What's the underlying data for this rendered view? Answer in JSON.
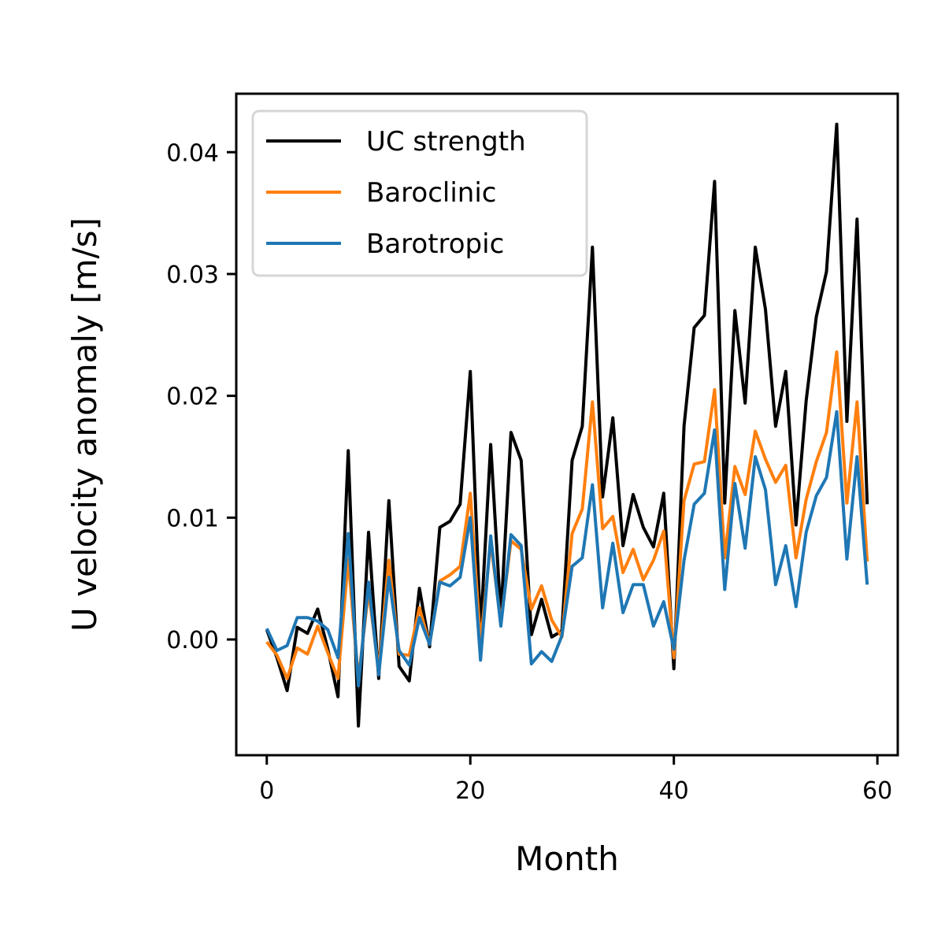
{
  "chart_data": {
    "type": "line",
    "title": "",
    "xlabel": "Month",
    "ylabel": "U velocity anomaly [m/s]",
    "xlim": [
      -3,
      62
    ],
    "ylim": [
      -0.0095,
      0.0448
    ],
    "xticks": [
      0,
      20,
      40,
      60
    ],
    "yticks": [
      0.0,
      0.01,
      0.02,
      0.03,
      0.04
    ],
    "xtick_labels": [
      "0",
      "20",
      "40",
      "60"
    ],
    "ytick_labels": [
      "0.00",
      "0.01",
      "0.02",
      "0.03",
      "0.04"
    ],
    "grid": false,
    "legend_position": "top-left",
    "x": [
      0,
      1,
      2,
      3,
      4,
      5,
      6,
      7,
      8,
      9,
      10,
      11,
      12,
      13,
      14,
      15,
      16,
      17,
      18,
      19,
      20,
      21,
      22,
      23,
      24,
      25,
      26,
      27,
      28,
      29,
      30,
      31,
      32,
      33,
      34,
      35,
      36,
      37,
      38,
      39,
      40,
      41,
      42,
      43,
      44,
      45,
      46,
      47,
      48,
      49,
      50,
      51,
      52,
      53,
      54,
      55,
      56,
      57,
      58,
      59
    ],
    "series": [
      {
        "name": "UC strength",
        "color": "#000000",
        "values": [
          0.0008,
          -0.0015,
          -0.0042,
          0.001,
          0.0005,
          0.0025,
          -0.0008,
          -0.0047,
          0.0155,
          -0.0071,
          0.0088,
          -0.0032,
          0.0114,
          -0.0022,
          -0.0034,
          0.0042,
          -0.0006,
          0.0092,
          0.0097,
          0.0111,
          0.022,
          0.0006,
          0.016,
          0.0019,
          0.017,
          0.0147,
          0.0004,
          0.0033,
          0.0002,
          0.0007,
          0.0147,
          0.0175,
          0.0322,
          0.0117,
          0.0182,
          0.0077,
          0.0119,
          0.0092,
          0.0076,
          0.012,
          -0.0024,
          0.0175,
          0.0256,
          0.0266,
          0.0376,
          0.0112,
          0.027,
          0.0194,
          0.0322,
          0.0271,
          0.0175,
          0.022,
          0.0094,
          0.0196,
          0.0265,
          0.0302,
          0.0423,
          0.0179,
          0.0345,
          0.0111
        ]
      },
      {
        "name": "Baroclinic",
        "color": "#ff7f0e",
        "values": [
          -0.0002,
          -0.0013,
          -0.0032,
          -0.0007,
          -0.0012,
          0.0011,
          -0.0011,
          -0.0032,
          0.0066,
          -0.0033,
          0.004,
          -0.0025,
          0.0065,
          -0.0012,
          -0.0013,
          0.0026,
          -0.0004,
          0.0048,
          0.0053,
          0.006,
          0.012,
          -0.0003,
          0.008,
          0.0014,
          0.0081,
          0.0074,
          0.0025,
          0.0044,
          0.0016,
          0.0002,
          0.0087,
          0.0107,
          0.0195,
          0.0091,
          0.0101,
          0.0055,
          0.0074,
          0.0049,
          0.0065,
          0.0089,
          -0.0015,
          0.0114,
          0.0144,
          0.0146,
          0.0205,
          0.0067,
          0.0142,
          0.0119,
          0.0171,
          0.0148,
          0.0129,
          0.0143,
          0.0067,
          0.0115,
          0.0146,
          0.017,
          0.0236,
          0.0112,
          0.0195,
          0.0064
        ]
      },
      {
        "name": "Barotropic",
        "color": "#1f77b4",
        "values": [
          0.0009,
          -0.0009,
          -0.0005,
          0.0018,
          0.0018,
          0.0015,
          0.0008,
          -0.0015,
          0.0087,
          -0.0038,
          0.0047,
          -0.0029,
          0.0051,
          -0.0009,
          -0.0021,
          0.0018,
          -0.0004,
          0.0047,
          0.0044,
          0.0051,
          0.01,
          -0.0017,
          0.0085,
          0.0011,
          0.0086,
          0.0077,
          -0.002,
          -0.001,
          -0.0018,
          0.0003,
          0.006,
          0.0067,
          0.0127,
          0.0026,
          0.0079,
          0.0022,
          0.0045,
          0.0045,
          0.0011,
          0.0031,
          -0.0008,
          0.0065,
          0.0111,
          0.012,
          0.0172,
          0.0041,
          0.0128,
          0.0075,
          0.015,
          0.0123,
          0.0045,
          0.0077,
          0.0027,
          0.0088,
          0.0118,
          0.0133,
          0.0187,
          0.0066,
          0.015,
          0.0045
        ]
      }
    ]
  }
}
